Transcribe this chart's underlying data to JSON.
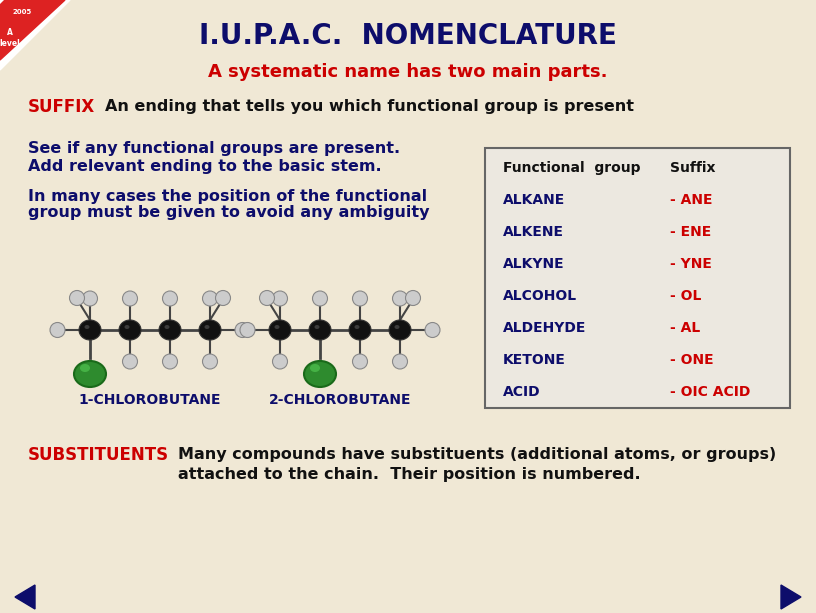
{
  "title": "I.U.P.A.C.  NOMENCLATURE",
  "subtitle": "A systematic name has two main parts.",
  "bg_color": "#f0e8d5",
  "title_color": "#0d0d6b",
  "subtitle_color": "#cc0000",
  "suffix_label": "SUFFIX",
  "suffix_text": "An ending that tells you which functional group is present",
  "suffix_label_color": "#cc0000",
  "suffix_text_color": "#111111",
  "blue_text1": "See if any functional groups are present.",
  "blue_text2": "Add relevant ending to the basic stem.",
  "blue_text3": "In many cases the position of the functional",
  "blue_text4": "group must be given to avoid any ambiguity",
  "blue_color": "#0d0d6b",
  "mol1_label": "1-CHLOROBUTANE",
  "mol2_label": "2-CHLOROBUTANE",
  "mol_label_color": "#0d0d6b",
  "table_header1": "Functional  group",
  "table_header2": "Suffix",
  "table_rows": [
    [
      "ALKANE",
      "- ANE"
    ],
    [
      "ALKENE",
      "- ENE"
    ],
    [
      "ALKYNE",
      "- YNE"
    ],
    [
      "ALCOHOL",
      "- OL"
    ],
    [
      "ALDEHYDE",
      "- AL"
    ],
    [
      "KETONE",
      "- ONE"
    ],
    [
      "ACID",
      "- OIC ACID"
    ]
  ],
  "table_col1_color": "#0d0d6b",
  "table_col2_color": "#cc0000",
  "table_header_color": "#111111",
  "table_bg": "#ece8e0",
  "substituents_label": "SUBSTITUENTS",
  "substituents_text1": "Many compounds have substituents (additional atoms, or groups)",
  "substituents_text2": "attached to the chain.  Their position is numbered.",
  "substituents_label_color": "#cc0000",
  "substituents_text_color": "#111111",
  "arrow_color": "#0d0d6b",
  "carbon_color": "#111111",
  "hydrogen_color": "#cccccc",
  "chloro_color": "#2e8b2e",
  "bond_color": "#444444"
}
